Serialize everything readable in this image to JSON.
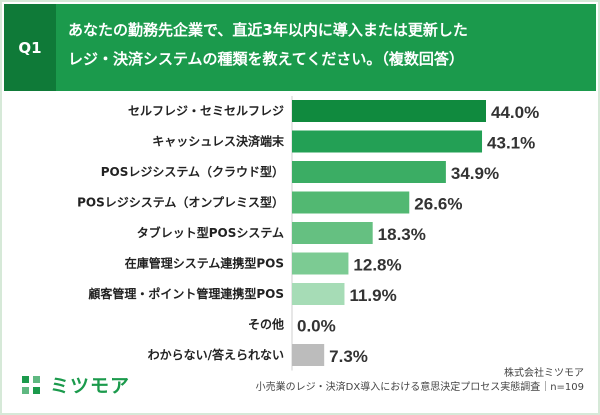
{
  "question": {
    "number": "Q1",
    "line1": "あなたの勤務先企業で、直近3年以内に導入または更新した",
    "line2": "レジ・決済システムの種類を教えてください。（複数回答）"
  },
  "chart_data": {
    "type": "bar",
    "orientation": "horizontal",
    "categories": [
      "セルフレジ・セミセルフレジ",
      "キャッシュレス決済端末",
      "POSレジシステム（クラウド型）",
      "POSレジシステム（オンプレミス型）",
      "タブレット型POSシステム",
      "在庫管理システム連携型POS",
      "顧客管理・ポイント管理連携型POS",
      "その他",
      "わからない/答えられない"
    ],
    "values": [
      44.0,
      43.1,
      34.9,
      26.6,
      18.3,
      12.8,
      11.9,
      0.0,
      7.3
    ],
    "value_labels": [
      "44.0%",
      "43.1%",
      "34.9%",
      "26.6%",
      "18.3%",
      "12.8%",
      "11.9%",
      "0.0%",
      "7.3%"
    ],
    "bar_colors": [
      "#108a3e",
      "#23a055",
      "#3bad64",
      "#52b872",
      "#65c081",
      "#7ccb93",
      "#a6dcb6",
      "#a6dcb6",
      "#bcbcbc"
    ],
    "xlim": [
      0,
      44.0
    ],
    "unit": "%"
  },
  "footer": {
    "logo_text": "ミツモア",
    "company": "株式会社ミツモア",
    "survey": "小売業のレジ・決済DX導入における意思決定プロセス実態調査｜n=109"
  },
  "colors": {
    "header_bg": "#1b9a4c",
    "q_box_bg": "#0f7a38",
    "brand": "#1b9a4c"
  }
}
